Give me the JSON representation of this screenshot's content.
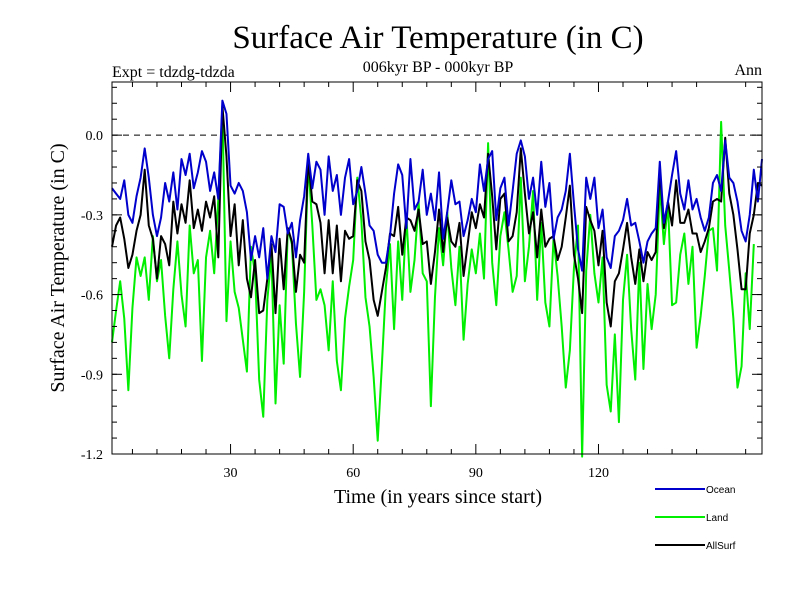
{
  "chart_data": {
    "type": "line",
    "title": "Surface Air Temperature (in C)",
    "subtitle_left": "Expt = tdzdg-tdzda",
    "subtitle_center": "006kyr BP - 000kyr BP",
    "subtitle_right": "Ann",
    "xlabel": "Time (in years since start)",
    "ylabel": "Surface Air Temperature (in C)",
    "xlim": [
      1,
      160
    ],
    "ylim": [
      -1.2,
      0.2
    ],
    "xticks": [
      30,
      60,
      90,
      120
    ],
    "xtick_labels": [
      "30",
      "60",
      "90",
      "120"
    ],
    "yticks": [
      0.0,
      -0.3,
      -0.6,
      -0.9,
      -1.2
    ],
    "ytick_labels": [
      "0.0",
      "-0.3",
      "-0.6",
      "-0.9",
      "-1.2"
    ],
    "reference_line": 0.0,
    "legend_position": "bottom-right, outside plot",
    "series": [
      {
        "name": "Ocean",
        "color": "#0000cc",
        "values": [
          -0.2,
          -0.22,
          -0.24,
          -0.17,
          -0.3,
          -0.33,
          -0.23,
          -0.16,
          -0.05,
          -0.16,
          -0.3,
          -0.38,
          -0.31,
          -0.18,
          -0.25,
          -0.14,
          -0.28,
          -0.09,
          -0.15,
          -0.07,
          -0.2,
          -0.14,
          -0.06,
          -0.1,
          -0.21,
          -0.14,
          -0.24,
          0.13,
          0.08,
          -0.19,
          -0.22,
          -0.18,
          -0.21,
          -0.29,
          -0.47,
          -0.38,
          -0.46,
          -0.35,
          -0.54,
          -0.38,
          -0.44,
          -0.26,
          -0.27,
          -0.37,
          -0.33,
          -0.46,
          -0.32,
          -0.23,
          -0.07,
          -0.2,
          -0.1,
          -0.13,
          -0.3,
          -0.08,
          -0.21,
          -0.15,
          -0.3,
          -0.16,
          -0.09,
          -0.26,
          -0.21,
          -0.12,
          -0.22,
          -0.34,
          -0.36,
          -0.45,
          -0.48,
          -0.48,
          -0.38,
          -0.22,
          -0.11,
          -0.15,
          -0.35,
          -0.09,
          -0.28,
          -0.25,
          -0.13,
          -0.3,
          -0.22,
          -0.32,
          -0.14,
          -0.39,
          -0.29,
          -0.17,
          -0.26,
          -0.25,
          -0.38,
          -0.32,
          -0.24,
          -0.29,
          -0.11,
          -0.21,
          -0.09,
          -0.06,
          -0.32,
          -0.2,
          -0.16,
          -0.34,
          -0.21,
          -0.07,
          -0.02,
          -0.08,
          -0.24,
          -0.16,
          -0.3,
          -0.1,
          -0.27,
          -0.18,
          -0.39,
          -0.31,
          -0.28,
          -0.21,
          -0.07,
          -0.26,
          -0.43,
          -0.51,
          -0.16,
          -0.24,
          -0.16,
          -0.35,
          -0.28,
          -0.46,
          -0.5,
          -0.38,
          -0.36,
          -0.32,
          -0.24,
          -0.34,
          -0.33,
          -0.4,
          -0.48,
          -0.4,
          -0.37,
          -0.35,
          -0.1,
          -0.33,
          -0.25,
          -0.15,
          -0.06,
          -0.22,
          -0.28,
          -0.17,
          -0.28,
          -0.24,
          -0.31,
          -0.36,
          -0.31,
          -0.18,
          -0.15,
          -0.21,
          -0.02,
          -0.16,
          -0.18,
          -0.25,
          -0.36,
          -0.4,
          -0.3,
          -0.13,
          -0.25,
          -0.09
        ],
        "label": "Ocean"
      },
      {
        "name": "Land",
        "color": "#00ee00",
        "values": [
          -0.78,
          -0.66,
          -0.55,
          -0.69,
          -0.96,
          -0.65,
          -0.46,
          -0.53,
          -0.46,
          -0.62,
          -0.38,
          -0.55,
          -0.47,
          -0.68,
          -0.84,
          -0.58,
          -0.4,
          -0.6,
          -0.72,
          -0.34,
          -0.52,
          -0.47,
          -0.85,
          -0.46,
          -0.36,
          -0.52,
          -0.24,
          0.1,
          -0.7,
          -0.4,
          -0.59,
          -0.65,
          -0.77,
          -0.89,
          -0.42,
          -0.52,
          -0.92,
          -1.06,
          -0.62,
          -0.45,
          -1.01,
          -0.64,
          -0.86,
          -0.35,
          -0.41,
          -0.71,
          -0.91,
          -0.59,
          -0.1,
          -0.34,
          -0.62,
          -0.58,
          -0.64,
          -0.81,
          -0.55,
          -0.85,
          -0.96,
          -0.69,
          -0.57,
          -0.47,
          -0.16,
          -0.32,
          -0.61,
          -0.72,
          -0.91,
          -1.15,
          -0.87,
          -0.57,
          -0.41,
          -0.73,
          -0.4,
          -0.62,
          -0.3,
          -0.59,
          -0.47,
          -0.25,
          -0.52,
          -0.55,
          -1.02,
          -0.61,
          -0.35,
          -0.49,
          -0.29,
          -0.5,
          -0.64,
          -0.42,
          -0.77,
          -0.56,
          -0.43,
          -0.52,
          -0.37,
          -0.54,
          -0.03,
          -0.48,
          -0.64,
          -0.38,
          -0.29,
          -0.43,
          -0.59,
          -0.53,
          -0.16,
          -0.55,
          -0.42,
          -0.21,
          -0.62,
          -0.33,
          -0.63,
          -0.72,
          -0.39,
          -0.53,
          -0.72,
          -0.95,
          -0.81,
          -0.5,
          -0.34,
          -1.21,
          -0.51,
          -0.3,
          -0.52,
          -0.63,
          -0.46,
          -0.94,
          -1.04,
          -0.75,
          -1.08,
          -0.62,
          -0.45,
          -0.73,
          -0.92,
          -0.48,
          -0.88,
          -0.56,
          -0.73,
          -0.6,
          -0.19,
          -0.41,
          -0.26,
          -0.64,
          -0.63,
          -0.45,
          -0.37,
          -0.56,
          -0.42,
          -0.8,
          -0.68,
          -0.53,
          -0.36,
          -0.35,
          -0.51,
          0.05,
          -0.34,
          -0.51,
          -0.69,
          -0.95,
          -0.87,
          -0.52,
          -0.73,
          -0.41
        ],
        "label": "Land"
      },
      {
        "name": "AllSurf",
        "color": "#000000",
        "values": [
          -0.42,
          -0.34,
          -0.31,
          -0.39,
          -0.5,
          -0.45,
          -0.36,
          -0.3,
          -0.13,
          -0.34,
          -0.39,
          -0.54,
          -0.38,
          -0.41,
          -0.49,
          -0.25,
          -0.37,
          -0.26,
          -0.33,
          -0.17,
          -0.35,
          -0.28,
          -0.36,
          -0.25,
          -0.31,
          -0.23,
          -0.46,
          0.11,
          -0.08,
          -0.38,
          -0.26,
          -0.49,
          -0.32,
          -0.54,
          -0.61,
          -0.47,
          -0.67,
          -0.66,
          -0.54,
          -0.41,
          -0.67,
          -0.39,
          -0.58,
          -0.35,
          -0.4,
          -0.59,
          -0.45,
          -0.48,
          -0.09,
          -0.25,
          -0.26,
          -0.33,
          -0.52,
          -0.32,
          -0.52,
          -0.34,
          -0.55,
          -0.36,
          -0.39,
          -0.38,
          -0.17,
          -0.21,
          -0.4,
          -0.47,
          -0.62,
          -0.68,
          -0.59,
          -0.5,
          -0.37,
          -0.38,
          -0.27,
          -0.45,
          -0.31,
          -0.32,
          -0.36,
          -0.28,
          -0.41,
          -0.4,
          -0.56,
          -0.44,
          -0.28,
          -0.44,
          -0.31,
          -0.4,
          -0.42,
          -0.33,
          -0.53,
          -0.41,
          -0.29,
          -0.35,
          -0.26,
          -0.31,
          -0.07,
          -0.23,
          -0.43,
          -0.24,
          -0.22,
          -0.4,
          -0.38,
          -0.29,
          -0.05,
          -0.22,
          -0.37,
          -0.29,
          -0.46,
          -0.28,
          -0.42,
          -0.39,
          -0.38,
          -0.47,
          -0.42,
          -0.31,
          -0.19,
          -0.45,
          -0.54,
          -0.67,
          -0.27,
          -0.32,
          -0.36,
          -0.49,
          -0.36,
          -0.63,
          -0.72,
          -0.55,
          -0.52,
          -0.43,
          -0.33,
          -0.46,
          -0.56,
          -0.43,
          -0.55,
          -0.44,
          -0.47,
          -0.44,
          -0.13,
          -0.35,
          -0.25,
          -0.34,
          -0.17,
          -0.33,
          -0.33,
          -0.28,
          -0.37,
          -0.37,
          -0.44,
          -0.4,
          -0.35,
          -0.25,
          -0.24,
          -0.25,
          -0.01,
          -0.22,
          -0.3,
          -0.43,
          -0.58,
          -0.58,
          -0.37,
          -0.3,
          -0.18,
          -0.19
        ],
        "label": "AllSurf"
      }
    ]
  }
}
